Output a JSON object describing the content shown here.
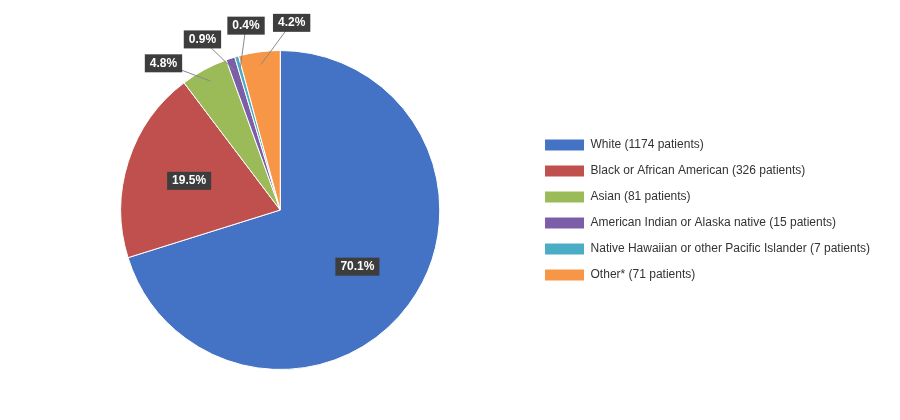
{
  "chart_data": {
    "type": "pie",
    "categories": [
      "White (1174 patients)",
      "Black or African American (326 patients)",
      "Asian (81 patients)",
      "American Indian or Alaska native (15 patients)",
      "Native Hawaiian or other Pacific Islander (7 patients)",
      "Other* (71 patients)"
    ],
    "values": [
      70.1,
      19.5,
      4.8,
      0.9,
      0.4,
      4.2
    ],
    "value_labels": [
      "70.1%",
      "19.5%",
      "4.8%",
      "0.9%",
      "0.4%",
      "4.2%"
    ],
    "colors": [
      "#4472C4",
      "#C0504D",
      "#9BBB59",
      "#7B5EA7",
      "#4BACC6",
      "#F79646"
    ],
    "data_labels": true,
    "legend": "right"
  }
}
